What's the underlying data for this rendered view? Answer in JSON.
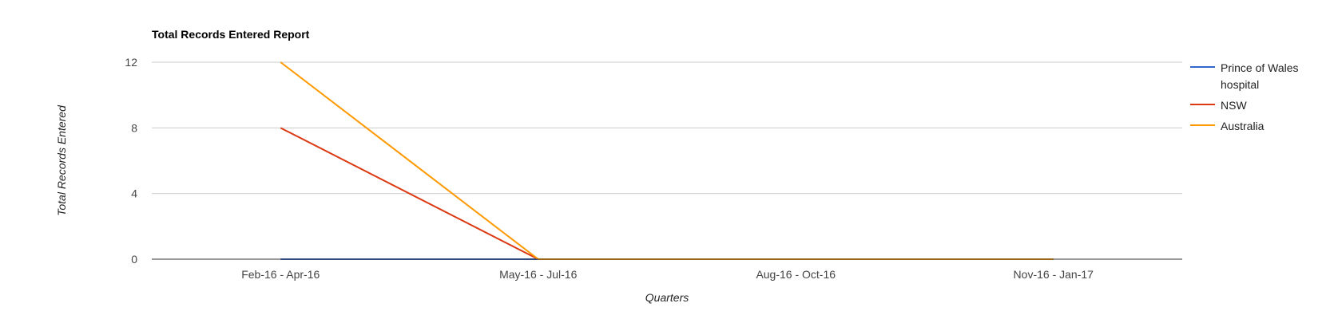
{
  "chart_data": {
    "type": "line",
    "title": "Total Records Entered Report",
    "xlabel": "Quarters",
    "ylabel": "Total Records Entered",
    "categories": [
      "Feb-16 - Apr-16",
      "May-16 - Jul-16",
      "Aug-16 - Oct-16",
      "Nov-16 - Jan-17"
    ],
    "ylim": [
      0,
      12
    ],
    "yticks": [
      0,
      4,
      8,
      12
    ],
    "grid": true,
    "legend_position": "right",
    "series": [
      {
        "name": "Prince of Wales hospital",
        "legend_lines": [
          "Prince of Wales",
          "hospital"
        ],
        "color": "#3366cc",
        "values": [
          0,
          0,
          0,
          0
        ]
      },
      {
        "name": "NSW",
        "legend_lines": [
          "NSW"
        ],
        "color": "#dc3912",
        "values": [
          8,
          0,
          0,
          0
        ]
      },
      {
        "name": "Australia",
        "legend_lines": [
          "Australia"
        ],
        "color": "#ff9900",
        "values": [
          12,
          0,
          0,
          0
        ]
      }
    ]
  }
}
